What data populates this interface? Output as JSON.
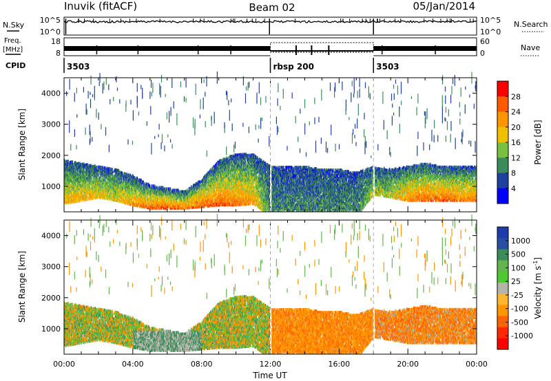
{
  "header": {
    "station": "Inuvik (fitACF)",
    "beam": "Beam 02",
    "date": "05/Jan/2014"
  },
  "noise_panel": {
    "left_label": "N.Sky",
    "right_label": "N.Search",
    "left_ticks": [
      "10^5",
      "10^0"
    ],
    "right_ticks": [
      "10^5",
      "10^0"
    ]
  },
  "freq_panel": {
    "left_label_1": "Freq.",
    "left_label_2": "[MHz]",
    "right_label": "Nave",
    "left_ticks": [
      "18",
      "8"
    ],
    "right_ticks": [
      "60",
      "0"
    ]
  },
  "cpid": {
    "label": "CPID",
    "segments": [
      {
        "label": "3503",
        "start_h": 0,
        "end_h": 12
      },
      {
        "label": "rbsp 200",
        "start_h": 12,
        "end_h": 18
      },
      {
        "label": "3503",
        "start_h": 18,
        "end_h": 24
      }
    ]
  },
  "chart_data": [
    {
      "type": "heatmap",
      "panel": "power",
      "ylabel": "Slant Range [km]",
      "ylim": [
        180,
        4500
      ],
      "yticks": [
        1000,
        2000,
        3000,
        4000
      ],
      "xlim": [
        0,
        24
      ],
      "colorbar_label": "Power [dB]",
      "colorbar_ticks": [
        "28",
        "24",
        "20",
        "16",
        "12",
        "8",
        "4"
      ],
      "colorbar_colors": [
        "#ff0000",
        "#ff5a00",
        "#ff9600",
        "#f0c000",
        "#78c040",
        "#3c8c5a",
        "#2040a0",
        "#0000ff"
      ],
      "x": [
        0,
        1,
        2,
        3,
        4,
        5,
        6,
        7,
        8,
        9,
        10,
        11,
        12,
        13,
        14,
        15,
        16,
        17,
        18,
        19,
        20,
        21,
        22,
        23
      ],
      "band_low_km": [
        400,
        500,
        600,
        500,
        350,
        250,
        250,
        250,
        300,
        350,
        350,
        400,
        0,
        0,
        0,
        0,
        0,
        0,
        700,
        600,
        500,
        500,
        500,
        500
      ],
      "band_high_km": [
        1800,
        1700,
        1600,
        1500,
        1300,
        1000,
        900,
        800,
        1200,
        1800,
        2000,
        2000,
        1600,
        1600,
        1600,
        1500,
        1500,
        1400,
        1600,
        1500,
        1600,
        1700,
        1600,
        1600
      ],
      "peak_power_db": [
        22,
        22,
        22,
        20,
        24,
        28,
        28,
        26,
        28,
        28,
        26,
        24,
        12,
        12,
        12,
        12,
        12,
        12,
        18,
        18,
        26,
        28,
        28,
        26
      ]
    },
    {
      "type": "heatmap",
      "panel": "velocity",
      "ylabel": "Slant Range [km]",
      "ylim": [
        180,
        4500
      ],
      "yticks": [
        1000,
        2000,
        3000,
        4000
      ],
      "xlim": [
        0,
        24
      ],
      "xticks": [
        "00:00",
        "04:00",
        "08:00",
        "12:00",
        "16:00",
        "20:00",
        "00:00"
      ],
      "xlabel": "Time UT",
      "colorbar_label": "Velocity [m s",
      "colorbar_label_sup": "-1",
      "colorbar_label_end": "]",
      "colorbar_ticks": [
        "1000",
        "500",
        "100",
        "25",
        "-25",
        "-100",
        "-500",
        "-1000"
      ],
      "colorbar_colors": [
        "#1e3caa",
        "#2850a0",
        "#3c8c5a",
        "#64b450",
        "#50c832",
        "#b4b4a8",
        "#ffb432",
        "#ff9600",
        "#ff6400",
        "#ff2800",
        "#ff0000"
      ]
    }
  ]
}
